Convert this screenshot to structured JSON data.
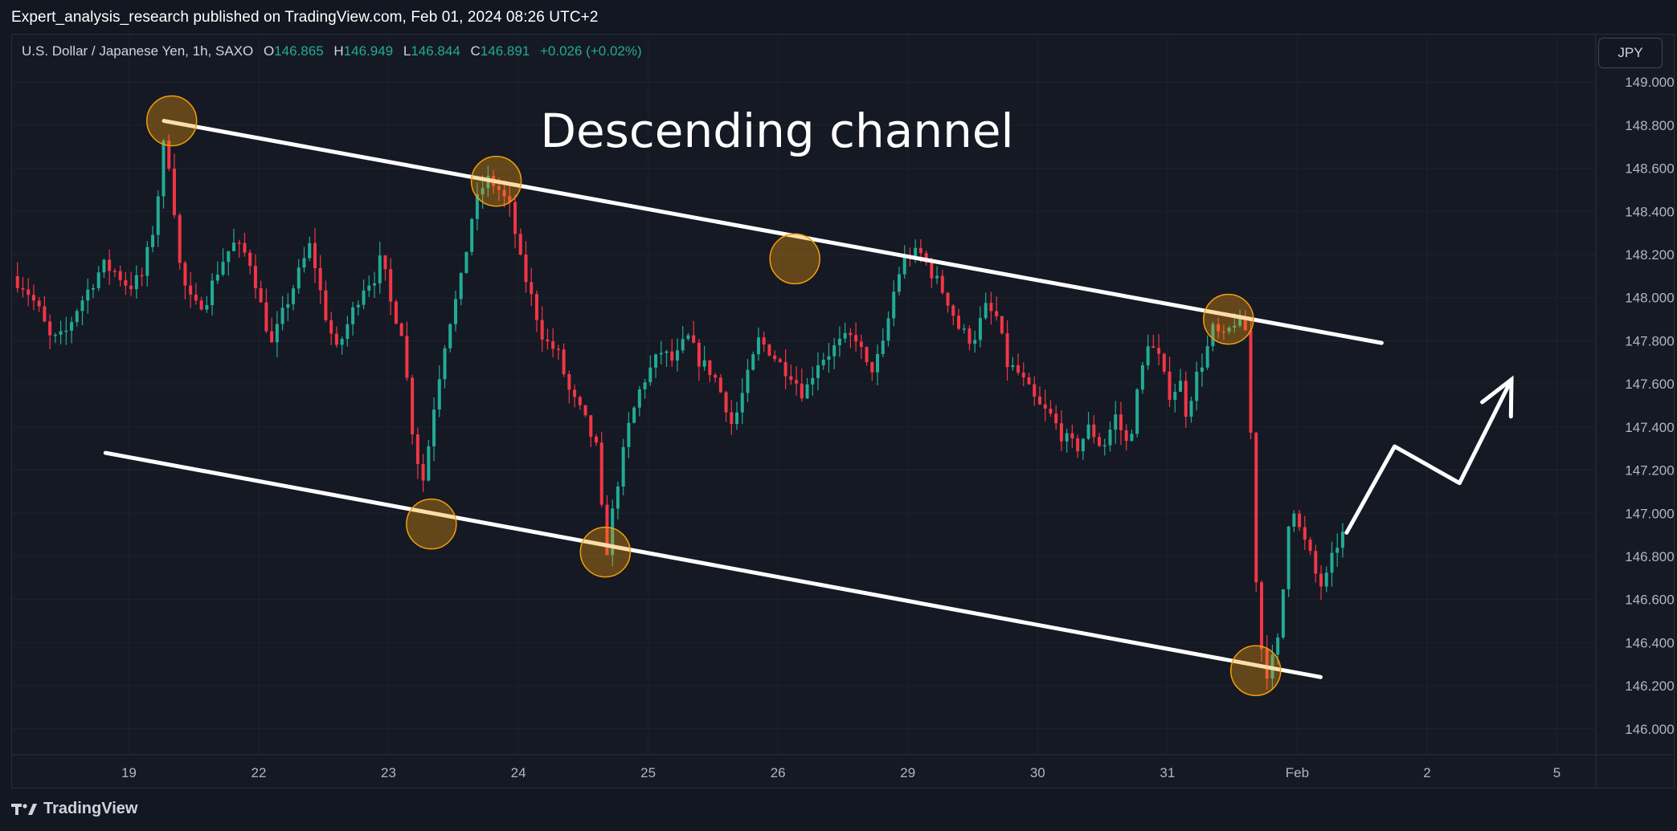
{
  "header": {
    "publish_line": "Expert_analysis_research published on TradingView.com, Feb 01, 2024 08:26 UTC+2"
  },
  "legend": {
    "symbol": "U.S. Dollar / Japanese Yen, 1h, SAXO",
    "o_label": "O",
    "o_value": "146.865",
    "h_label": "H",
    "h_value": "146.949",
    "l_label": "L",
    "l_value": "146.844",
    "c_label": "C",
    "c_value": "146.891",
    "change": "+0.026 (+0.02%)"
  },
  "currency_button": "JPY",
  "footer": {
    "brand": "TradingView"
  },
  "colors": {
    "up": "#22ab94",
    "down": "#f23645",
    "background": "#131722",
    "annotation": "#ffffff",
    "marker": "#f59e0b"
  },
  "chart_data": {
    "type": "candlestick",
    "title": "Descending channel",
    "y_axis": {
      "range": [
        145.88,
        149.12
      ],
      "ticks": [
        "149.000",
        "148.800",
        "148.600",
        "148.400",
        "148.200",
        "148.000",
        "147.800",
        "147.600",
        "147.400",
        "147.200",
        "147.000",
        "146.800",
        "146.600",
        "146.400",
        "146.200",
        "146.000"
      ]
    },
    "x_axis": {
      "range_index": [
        -0.9,
        11.3
      ],
      "ticks": [
        {
          "label": "19",
          "i": 0
        },
        {
          "label": "22",
          "i": 1
        },
        {
          "label": "23",
          "i": 2
        },
        {
          "label": "24",
          "i": 3
        },
        {
          "label": "25",
          "i": 4
        },
        {
          "label": "26",
          "i": 5
        },
        {
          "label": "29",
          "i": 6
        },
        {
          "label": "30",
          "i": 7
        },
        {
          "label": "31",
          "i": 8
        },
        {
          "label": "Feb",
          "i": 9
        },
        {
          "label": "2",
          "i": 10
        },
        {
          "label": "5",
          "i": 11
        }
      ]
    },
    "price_anchors": [
      [
        -0.9,
        148.1
      ],
      [
        -0.8,
        148.05
      ],
      [
        -0.7,
        147.95
      ],
      [
        -0.6,
        147.8
      ],
      [
        -0.5,
        147.82
      ],
      [
        -0.4,
        147.95
      ],
      [
        -0.3,
        148.05
      ],
      [
        -0.2,
        148.15
      ],
      [
        -0.1,
        148.12
      ],
      [
        0.0,
        148.05
      ],
      [
        0.1,
        148.1
      ],
      [
        0.2,
        148.35
      ],
      [
        0.27,
        148.72
      ],
      [
        0.32,
        148.6
      ],
      [
        0.4,
        148.1
      ],
      [
        0.5,
        147.95
      ],
      [
        0.6,
        148.0
      ],
      [
        0.7,
        148.15
      ],
      [
        0.8,
        148.25
      ],
      [
        0.9,
        148.2
      ],
      [
        0.95,
        148.15
      ],
      [
        1.0,
        148.0
      ],
      [
        1.1,
        147.78
      ],
      [
        1.2,
        147.95
      ],
      [
        1.3,
        148.1
      ],
      [
        1.4,
        148.25
      ],
      [
        1.5,
        147.95
      ],
      [
        1.6,
        147.75
      ],
      [
        1.7,
        147.9
      ],
      [
        1.8,
        148.05
      ],
      [
        1.9,
        148.1
      ],
      [
        1.95,
        148.2
      ],
      [
        2.0,
        148.0
      ],
      [
        2.1,
        147.85
      ],
      [
        2.2,
        147.3
      ],
      [
        2.27,
        147.15
      ],
      [
        2.35,
        147.5
      ],
      [
        2.45,
        147.85
      ],
      [
        2.55,
        148.05
      ],
      [
        2.65,
        148.4
      ],
      [
        2.75,
        148.55
      ],
      [
        2.83,
        148.52
      ],
      [
        2.95,
        148.4
      ],
      [
        3.0,
        148.2
      ],
      [
        3.1,
        148.0
      ],
      [
        3.2,
        147.8
      ],
      [
        3.3,
        147.75
      ],
      [
        3.4,
        147.55
      ],
      [
        3.5,
        147.45
      ],
      [
        3.6,
        147.3
      ],
      [
        3.65,
        146.95
      ],
      [
        3.68,
        146.82
      ],
      [
        3.75,
        147.1
      ],
      [
        3.85,
        147.4
      ],
      [
        3.95,
        147.6
      ],
      [
        4.0,
        147.65
      ],
      [
        4.1,
        147.75
      ],
      [
        4.2,
        147.7
      ],
      [
        4.3,
        147.82
      ],
      [
        4.4,
        147.7
      ],
      [
        4.5,
        147.65
      ],
      [
        4.6,
        147.5
      ],
      [
        4.65,
        147.4
      ],
      [
        4.75,
        147.6
      ],
      [
        4.85,
        147.8
      ],
      [
        4.95,
        147.75
      ],
      [
        5.0,
        147.7
      ],
      [
        5.1,
        147.65
      ],
      [
        5.2,
        147.55
      ],
      [
        5.3,
        147.7
      ],
      [
        5.4,
        147.75
      ],
      [
        5.5,
        147.8
      ],
      [
        5.6,
        147.82
      ],
      [
        5.7,
        147.65
      ],
      [
        5.8,
        147.75
      ],
      [
        5.9,
        148.05
      ],
      [
        5.95,
        148.15
      ],
      [
        6.0,
        148.2
      ],
      [
        6.1,
        148.2
      ],
      [
        6.2,
        148.1
      ],
      [
        6.3,
        148.0
      ],
      [
        6.4,
        147.85
      ],
      [
        6.5,
        147.8
      ],
      [
        6.6,
        147.95
      ],
      [
        6.7,
        147.9
      ],
      [
        6.75,
        147.7
      ],
      [
        6.85,
        147.65
      ],
      [
        6.95,
        147.55
      ],
      [
        7.0,
        147.5
      ],
      [
        7.1,
        147.45
      ],
      [
        7.2,
        147.35
      ],
      [
        7.3,
        147.3
      ],
      [
        7.4,
        147.4
      ],
      [
        7.5,
        147.3
      ],
      [
        7.6,
        147.45
      ],
      [
        7.7,
        147.3
      ],
      [
        7.75,
        147.5
      ],
      [
        7.85,
        147.8
      ],
      [
        7.95,
        147.7
      ],
      [
        8.0,
        147.55
      ],
      [
        8.1,
        147.6
      ],
      [
        8.15,
        147.45
      ],
      [
        8.2,
        147.6
      ],
      [
        8.3,
        147.75
      ],
      [
        8.35,
        147.85
      ],
      [
        8.45,
        147.8
      ],
      [
        8.5,
        147.9
      ],
      [
        8.6,
        147.85
      ],
      [
        8.63,
        147.75
      ],
      [
        8.65,
        147.1
      ],
      [
        8.7,
        146.5
      ],
      [
        8.75,
        146.25
      ],
      [
        8.8,
        146.3
      ],
      [
        8.85,
        146.4
      ],
      [
        8.9,
        146.7
      ],
      [
        8.95,
        147.1
      ],
      [
        9.0,
        146.95
      ],
      [
        9.1,
        146.8
      ],
      [
        9.15,
        146.7
      ],
      [
        9.2,
        146.65
      ],
      [
        9.25,
        146.75
      ],
      [
        9.3,
        146.85
      ],
      [
        9.35,
        146.9
      ]
    ],
    "annotations": {
      "upper_line": [
        [
          0.27,
          148.82
        ],
        [
          9.65,
          147.79
        ]
      ],
      "lower_line": [
        [
          -0.18,
          147.28
        ],
        [
          9.18,
          146.24
        ]
      ],
      "touch_points": [
        [
          0.33,
          148.82
        ],
        [
          2.83,
          148.54
        ],
        [
          5.13,
          148.18
        ],
        [
          8.47,
          147.9
        ],
        [
          2.33,
          146.95
        ],
        [
          3.67,
          146.82
        ],
        [
          8.68,
          146.27
        ]
      ],
      "forecast_path": [
        [
          9.38,
          146.91
        ],
        [
          9.75,
          147.31
        ],
        [
          10.25,
          147.14
        ],
        [
          10.65,
          147.62
        ]
      ]
    }
  }
}
